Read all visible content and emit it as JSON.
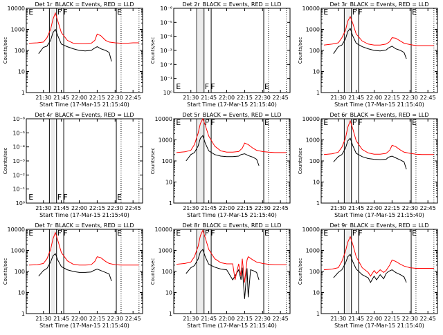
{
  "x_tick_labels": [
    "21:30",
    "21:45",
    "22:00",
    "22:15",
    "22:30",
    "22:45"
  ],
  "x_axis_label": "Start Time (17-Mar-15 21:15:40)",
  "y_axis_label": "Counts/sec",
  "legend_text": "BLACK = Events, RED = LLD",
  "colors": {
    "events": "#000000",
    "lld": "#ff0000",
    "axes": "#000000",
    "background": "#ffffff"
  },
  "markers": {
    "shaded_interval": [
      "21:36",
      "21:40"
    ],
    "solid_lines": [
      "21:35",
      "21:41",
      "21:47",
      "22:31"
    ],
    "dotted_lines": [
      "22:35",
      "22:50"
    ],
    "letters": [
      {
        "text": "E",
        "time": "21:17"
      },
      {
        "text": "F",
        "time": "21:41"
      },
      {
        "text": "F",
        "time": "21:46"
      },
      {
        "text": "E",
        "time": "22:31"
      }
    ]
  },
  "chart_data": [
    {
      "type": "line",
      "title": "Det 1r",
      "log_y": true,
      "empty": false,
      "ylim": [
        1,
        10000
      ],
      "y_ticks": [
        "1",
        "10",
        "100",
        "1000",
        "10000"
      ],
      "x_range": [
        "21:15:40",
        "22:53"
      ],
      "series": [
        {
          "name": "Events",
          "color": "#000000",
          "x": [
            "21:26",
            "21:30",
            "21:33",
            "21:36",
            "21:38",
            "21:40",
            "21:42",
            "21:45",
            "21:50",
            "21:55",
            "22:00",
            "22:05",
            "22:10",
            "22:12",
            "22:15",
            "22:18",
            "22:22",
            "22:25",
            "22:27"
          ],
          "y": [
            70,
            140,
            160,
            300,
            700,
            1000,
            500,
            200,
            150,
            120,
            100,
            95,
            100,
            120,
            150,
            120,
            100,
            80,
            30
          ]
        },
        {
          "name": "LLD",
          "color": "#ff0000",
          "x": [
            "21:18",
            "21:25",
            "21:30",
            "21:33",
            "21:36",
            "21:38",
            "21:40",
            "21:42",
            "21:45",
            "21:50",
            "21:55",
            "22:00",
            "22:05",
            "22:10",
            "22:13",
            "22:15",
            "22:18",
            "22:22",
            "22:25",
            "22:30",
            "22:35",
            "22:40",
            "22:45",
            "22:50"
          ],
          "y": [
            220,
            230,
            250,
            400,
            1000,
            3000,
            6000,
            2500,
            700,
            300,
            220,
            210,
            210,
            220,
            300,
            600,
            500,
            300,
            250,
            230,
            220,
            220,
            230,
            230
          ]
        }
      ]
    },
    {
      "type": "line",
      "title": "Det 2r",
      "log_y": true,
      "empty": true,
      "ylim": [
        1,
        1e-06
      ],
      "y_ticks": [
        "10⁰",
        "10⁻¹",
        "10⁻²",
        "10⁻³",
        "10⁻⁴",
        "10⁻⁵",
        "10⁻⁶"
      ],
      "x_range": [
        "21:15:40",
        "22:53"
      ],
      "series": []
    },
    {
      "type": "line",
      "title": "Det 3r",
      "log_y": true,
      "empty": false,
      "ylim": [
        1,
        10000
      ],
      "y_ticks": [
        "1",
        "10",
        "100",
        "1000",
        "10000"
      ],
      "x_range": [
        "21:15:40",
        "22:53"
      ],
      "series": [
        {
          "name": "Events",
          "color": "#000000",
          "x": [
            "21:26",
            "21:30",
            "21:33",
            "21:36",
            "21:38",
            "21:40",
            "21:42",
            "21:45",
            "21:50",
            "21:55",
            "22:00",
            "22:05",
            "22:10",
            "22:12",
            "22:15",
            "22:18",
            "22:22",
            "22:25",
            "22:27"
          ],
          "y": [
            70,
            150,
            180,
            350,
            800,
            1100,
            500,
            220,
            150,
            120,
            100,
            95,
            105,
            130,
            160,
            120,
            100,
            80,
            40
          ]
        },
        {
          "name": "LLD",
          "color": "#ff0000",
          "x": [
            "21:18",
            "21:25",
            "21:30",
            "21:33",
            "21:36",
            "21:38",
            "21:40",
            "21:42",
            "21:45",
            "21:50",
            "21:55",
            "22:00",
            "22:05",
            "22:10",
            "22:13",
            "22:15",
            "22:18",
            "22:22",
            "22:25",
            "22:30",
            "22:35",
            "22:40",
            "22:45",
            "22:50"
          ],
          "y": [
            180,
            200,
            230,
            400,
            900,
            2500,
            4000,
            2000,
            600,
            280,
            200,
            180,
            180,
            200,
            260,
            400,
            380,
            280,
            220,
            190,
            170,
            170,
            170,
            170
          ]
        }
      ]
    },
    {
      "type": "line",
      "title": "Det 4r",
      "log_y": true,
      "empty": true,
      "ylim": [
        1,
        1e-06
      ],
      "y_ticks": [
        "10⁰",
        "10⁻¹",
        "10⁻²",
        "10⁻³",
        "10⁻⁴",
        "10⁻⁵",
        "10⁻⁶"
      ],
      "x_range": [
        "21:15:40",
        "22:53"
      ],
      "series": []
    },
    {
      "type": "line",
      "title": "Det 5r",
      "log_y": true,
      "empty": false,
      "ylim": [
        1,
        10000
      ],
      "y_ticks": [
        "1",
        "10",
        "100",
        "1000",
        "10000"
      ],
      "x_range": [
        "21:15:40",
        "22:53"
      ],
      "series": [
        {
          "name": "Events",
          "color": "#000000",
          "x": [
            "21:26",
            "21:30",
            "21:33",
            "21:36",
            "21:38",
            "21:40",
            "21:42",
            "21:45",
            "21:50",
            "21:55",
            "22:00",
            "22:05",
            "22:10",
            "22:12",
            "22:15",
            "22:18",
            "22:22",
            "22:25",
            "22:27"
          ],
          "y": [
            100,
            200,
            250,
            500,
            1200,
            1600,
            700,
            300,
            200,
            170,
            160,
            160,
            170,
            200,
            220,
            180,
            150,
            120,
            60
          ]
        },
        {
          "name": "LLD",
          "color": "#ff0000",
          "x": [
            "21:18",
            "21:25",
            "21:30",
            "21:33",
            "21:36",
            "21:38",
            "21:40",
            "21:42",
            "21:45",
            "21:50",
            "21:55",
            "22:00",
            "22:05",
            "22:10",
            "22:13",
            "22:15",
            "22:18",
            "22:22",
            "22:25",
            "22:30",
            "22:35",
            "22:40",
            "22:45",
            "22:50"
          ],
          "y": [
            250,
            270,
            320,
            600,
            2000,
            6000,
            10000,
            5000,
            1500,
            500,
            300,
            260,
            260,
            280,
            400,
            700,
            600,
            400,
            320,
            280,
            260,
            250,
            250,
            250
          ]
        }
      ]
    },
    {
      "type": "line",
      "title": "Det 6r",
      "log_y": true,
      "empty": false,
      "ylim": [
        1,
        10000
      ],
      "y_ticks": [
        "1",
        "10",
        "100",
        "1000",
        "10000"
      ],
      "x_range": [
        "21:15:40",
        "22:53"
      ],
      "series": [
        {
          "name": "Events",
          "color": "#000000",
          "x": [
            "21:26",
            "21:30",
            "21:33",
            "21:36",
            "21:38",
            "21:40",
            "21:42",
            "21:45",
            "21:50",
            "21:55",
            "22:00",
            "22:05",
            "22:10",
            "22:12",
            "22:15",
            "22:18",
            "22:22",
            "22:25",
            "22:27"
          ],
          "y": [
            90,
            160,
            200,
            400,
            900,
            1200,
            550,
            230,
            160,
            130,
            120,
            115,
            120,
            150,
            170,
            140,
            110,
            90,
            40
          ]
        },
        {
          "name": "LLD",
          "color": "#ff0000",
          "x": [
            "21:18",
            "21:25",
            "21:30",
            "21:33",
            "21:36",
            "21:38",
            "21:40",
            "21:42",
            "21:45",
            "21:50",
            "21:55",
            "22:00",
            "22:05",
            "22:10",
            "22:13",
            "22:15",
            "22:18",
            "22:22",
            "22:25",
            "22:30",
            "22:35",
            "22:40",
            "22:45",
            "22:50"
          ],
          "y": [
            200,
            220,
            260,
            450,
            1200,
            4000,
            8000,
            3500,
            900,
            350,
            240,
            210,
            210,
            230,
            320,
            550,
            480,
            330,
            260,
            230,
            210,
            200,
            200,
            200
          ]
        }
      ]
    },
    {
      "type": "line",
      "title": "Det 7r",
      "log_y": true,
      "empty": false,
      "ylim": [
        1,
        10000
      ],
      "y_ticks": [
        "1",
        "10",
        "100",
        "1000",
        "10000"
      ],
      "x_range": [
        "21:15:40",
        "22:53"
      ],
      "series": [
        {
          "name": "Events",
          "color": "#000000",
          "x": [
            "21:26",
            "21:30",
            "21:33",
            "21:36",
            "21:38",
            "21:40",
            "21:42",
            "21:45",
            "21:50",
            "21:55",
            "22:00",
            "22:05",
            "22:10",
            "22:12",
            "22:15",
            "22:18",
            "22:22",
            "22:25",
            "22:27"
          ],
          "y": [
            60,
            110,
            140,
            280,
            550,
            700,
            350,
            170,
            120,
            100,
            90,
            90,
            95,
            110,
            130,
            110,
            90,
            75,
            35
          ]
        },
        {
          "name": "LLD",
          "color": "#ff0000",
          "x": [
            "21:18",
            "21:25",
            "21:30",
            "21:33",
            "21:36",
            "21:38",
            "21:40",
            "21:42",
            "21:45",
            "21:50",
            "21:55",
            "22:00",
            "22:05",
            "22:10",
            "22:13",
            "22:15",
            "22:18",
            "22:22",
            "22:25",
            "22:30",
            "22:35",
            "22:40",
            "22:45",
            "22:50"
          ],
          "y": [
            200,
            210,
            240,
            400,
            1100,
            3500,
            7000,
            3000,
            800,
            320,
            220,
            200,
            200,
            210,
            300,
            500,
            450,
            300,
            240,
            210,
            200,
            200,
            200,
            200
          ]
        }
      ]
    },
    {
      "type": "line",
      "title": "Det 8r",
      "log_y": true,
      "empty": false,
      "ylim": [
        1,
        10000
      ],
      "y_ticks": [
        "1",
        "10",
        "100",
        "1000",
        "10000"
      ],
      "x_range": [
        "21:15:40",
        "22:53"
      ],
      "series": [
        {
          "name": "Events",
          "color": "#000000",
          "x": [
            "21:26",
            "21:30",
            "21:33",
            "21:36",
            "21:38",
            "21:40",
            "21:42",
            "21:45",
            "21:50",
            "21:55",
            "22:00",
            "22:05",
            "22:10",
            "22:12",
            "22:13",
            "22:15",
            "22:17",
            "22:18",
            "22:20",
            "22:22",
            "22:25",
            "22:27"
          ],
          "y": [
            80,
            150,
            190,
            380,
            850,
            1100,
            500,
            220,
            160,
            130,
            120,
            40,
            120,
            40,
            150,
            5,
            140,
            6,
            120,
            110,
            90,
            40
          ]
        },
        {
          "name": "LLD",
          "color": "#ff0000",
          "x": [
            "21:18",
            "21:25",
            "21:30",
            "21:33",
            "21:36",
            "21:38",
            "21:40",
            "21:42",
            "21:45",
            "21:50",
            "21:55",
            "22:00",
            "22:05",
            "22:07",
            "22:10",
            "22:12",
            "22:13",
            "22:15",
            "22:17",
            "22:18",
            "22:22",
            "22:25",
            "22:30",
            "22:35",
            "22:40",
            "22:45",
            "22:50"
          ],
          "y": [
            220,
            240,
            280,
            500,
            1500,
            5000,
            9000,
            4000,
            1100,
            400,
            260,
            230,
            230,
            40,
            230,
            60,
            400,
            30,
            350,
            500,
            350,
            280,
            240,
            220,
            210,
            210,
            210
          ]
        }
      ]
    },
    {
      "type": "line",
      "title": "Det 9r",
      "log_y": true,
      "empty": false,
      "ylim": [
        1,
        10000
      ],
      "y_ticks": [
        "1",
        "10",
        "100",
        "1000",
        "10000"
      ],
      "x_range": [
        "21:15:40",
        "22:53"
      ],
      "series": [
        {
          "name": "Events",
          "color": "#000000",
          "x": [
            "21:26",
            "21:30",
            "21:33",
            "21:36",
            "21:38",
            "21:40",
            "21:42",
            "21:45",
            "21:50",
            "21:55",
            "21:57",
            "22:00",
            "22:02",
            "22:05",
            "22:08",
            "22:10",
            "22:12",
            "22:15",
            "22:18",
            "22:22",
            "22:25",
            "22:27"
          ],
          "y": [
            50,
            90,
            120,
            250,
            500,
            650,
            300,
            130,
            70,
            50,
            30,
            60,
            40,
            70,
            45,
            80,
            100,
            120,
            90,
            70,
            55,
            30
          ]
        },
        {
          "name": "LLD",
          "color": "#ff0000",
          "x": [
            "21:18",
            "21:25",
            "21:30",
            "21:33",
            "21:36",
            "21:38",
            "21:40",
            "21:42",
            "21:45",
            "21:50",
            "21:55",
            "21:57",
            "22:00",
            "22:02",
            "22:05",
            "22:08",
            "22:10",
            "22:13",
            "22:15",
            "22:18",
            "22:22",
            "22:25",
            "22:30",
            "22:35",
            "22:40",
            "22:45",
            "22:50"
          ],
          "y": [
            120,
            130,
            150,
            300,
            900,
            2500,
            4500,
            2000,
            500,
            150,
            90,
            60,
            110,
            80,
            120,
            90,
            110,
            200,
            350,
            300,
            220,
            180,
            150,
            140,
            140,
            140,
            140
          ]
        }
      ]
    }
  ]
}
